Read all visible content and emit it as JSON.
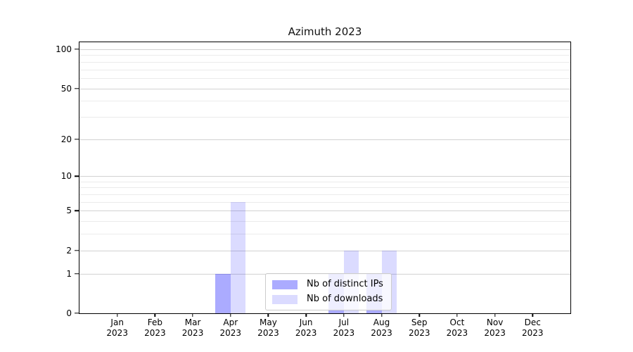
{
  "chart_data": {
    "type": "bar",
    "title": "Azimuth 2023",
    "categories": [
      "Jan 2023",
      "Feb 2023",
      "Mar 2023",
      "Apr 2023",
      "May 2023",
      "Jun 2023",
      "Jul 2023",
      "Aug 2023",
      "Sep 2023",
      "Oct 2023",
      "Nov 2023",
      "Dec 2023"
    ],
    "series": [
      {
        "name": "Nb of distinct IPs",
        "color": "#0000ff",
        "alpha": 0.33,
        "blended_hex": "#aaaaff",
        "values": [
          0,
          0,
          0,
          1,
          0,
          0,
          1,
          1,
          0,
          0,
          0,
          0
        ]
      },
      {
        "name": "Nb of downloads",
        "color": "#0000ff",
        "alpha": 0.14,
        "blended_hex": "#dcdcff",
        "values": [
          0,
          0,
          0,
          6,
          0,
          0,
          2,
          2,
          0,
          0,
          0,
          0
        ]
      }
    ],
    "xlabel": "",
    "ylabel": "",
    "y_axis": {
      "scale": "log1p",
      "major_ticks": [
        0,
        1,
        2,
        5,
        10,
        20,
        50,
        100
      ],
      "minor_gridlines": [
        3,
        4,
        6,
        7,
        8,
        9,
        30,
        40,
        60,
        70,
        80,
        90
      ],
      "ylim": [
        0,
        112
      ]
    },
    "grid": "horizontal major+minor",
    "legend_position": "lower center",
    "colors": {
      "axis": "#000000",
      "grid_major": "#d2d2d2",
      "grid_minor": "#ebebeb",
      "legend_border": "#cccccc"
    }
  }
}
